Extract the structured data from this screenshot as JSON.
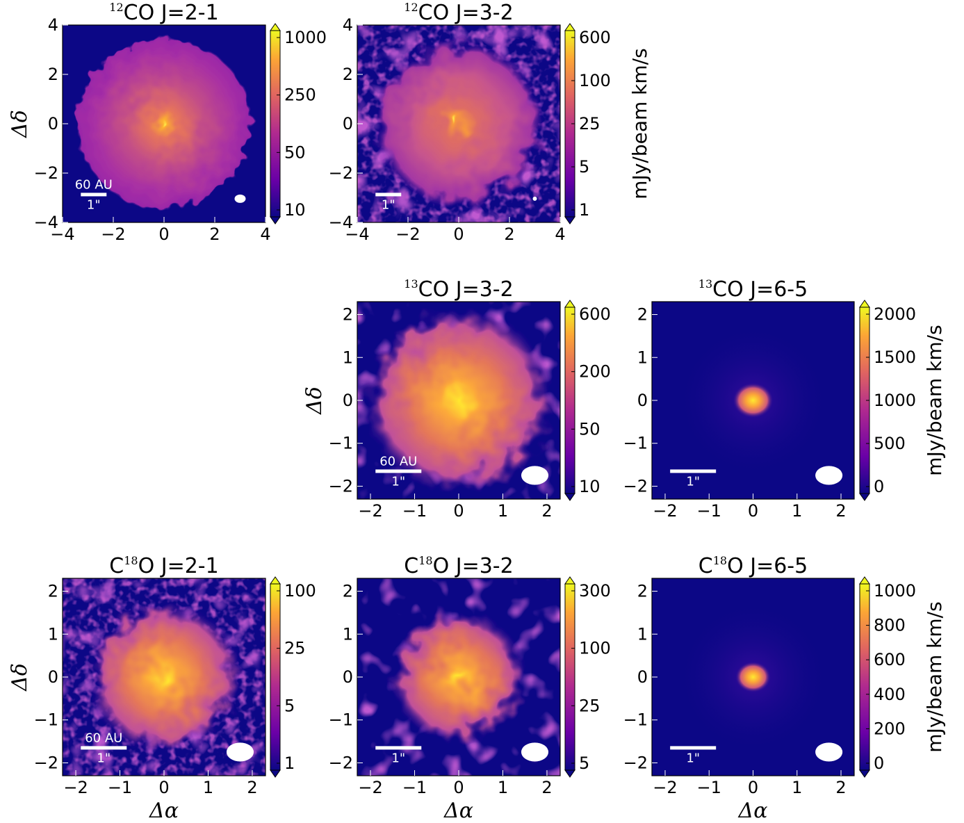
{
  "colors": {
    "background": "#0c0786",
    "colormap": [
      "#0c0786",
      "#6a00a7",
      "#b02a8f",
      "#e06461",
      "#fca635",
      "#eff821"
    ],
    "annotation": "#ffffff"
  },
  "axis_labels": {
    "x": "Δα",
    "y": "Δδ"
  },
  "colorbar_unit": "mJy/beam km/s",
  "chart_data": [
    {
      "type": "heatmap",
      "title": {
        "sup": "12",
        "main": "CO J=2-1"
      },
      "xlabel": "",
      "ylabel": "Δδ",
      "xlim": [
        -4,
        4
      ],
      "ylim": [
        -4,
        4
      ],
      "xticks": [
        "−4",
        "−2",
        "0",
        "2",
        "4"
      ],
      "yticks": [
        "−4",
        "−2",
        "0",
        "2",
        "4"
      ],
      "colorbar": {
        "scale": "log",
        "ticks": [
          "1000",
          "250",
          "50",
          "10"
        ],
        "unit": ""
      },
      "scale_bar": {
        "top": "60 AU",
        "bottom": "1\""
      },
      "emission": {
        "peak_x": 0,
        "peak_y": 0,
        "extent_radius": 3.4,
        "noise": "low"
      }
    },
    {
      "type": "heatmap",
      "title": {
        "sup": "12",
        "main": "CO J=3-2"
      },
      "xlabel": "",
      "ylabel": "",
      "xlim": [
        -4,
        4
      ],
      "ylim": [
        -4,
        4
      ],
      "xticks": [
        "−4",
        "−2",
        "0",
        "2",
        "4"
      ],
      "yticks": [
        "−4",
        "−2",
        "0",
        "2",
        "4"
      ],
      "colorbar": {
        "scale": "log",
        "ticks": [
          "600",
          "100",
          "25",
          "5",
          "1"
        ],
        "unit": "mJy/beam km/s"
      },
      "scale_bar": {
        "top": "",
        "bottom": "1\""
      },
      "emission": {
        "peak_x": 0,
        "peak_y": 0,
        "extent_radius": 3.3,
        "noise": "high"
      }
    },
    {
      "type": "heatmap",
      "title": {
        "sup": "13",
        "main": "CO J=3-2"
      },
      "xlabel": "",
      "ylabel": "Δδ",
      "xlim": [
        -2.3,
        2.3
      ],
      "ylim": [
        -2.3,
        2.3
      ],
      "xticks": [
        "−2",
        "−1",
        "0",
        "1",
        "2"
      ],
      "yticks": [
        "−2",
        "−1",
        "0",
        "1",
        "2"
      ],
      "colorbar": {
        "scale": "log",
        "ticks": [
          "600",
          "200",
          "50",
          "10"
        ],
        "unit": ""
      },
      "scale_bar": {
        "top": "60 AU",
        "bottom": "1\""
      },
      "emission": {
        "peak_x": 0,
        "peak_y": 0,
        "extent_radius": 2.1,
        "noise": "medium"
      }
    },
    {
      "type": "heatmap",
      "title": {
        "sup": "13",
        "main": "CO J=6-5"
      },
      "xlabel": "",
      "ylabel": "",
      "xlim": [
        -2.3,
        2.3
      ],
      "ylim": [
        -2.3,
        2.3
      ],
      "xticks": [
        "−2",
        "−1",
        "0",
        "1",
        "2"
      ],
      "yticks": [
        "−2",
        "−1",
        "0",
        "1",
        "2"
      ],
      "colorbar": {
        "scale": "linear",
        "ticks": [
          "2000",
          "1500",
          "1000",
          "500",
          "0"
        ],
        "unit": "mJy/beam km/s"
      },
      "scale_bar": {
        "top": "",
        "bottom": "1\""
      },
      "emission": {
        "peak_x": 0,
        "peak_y": 0,
        "extent_radius": 0.4,
        "noise": "low"
      }
    },
    {
      "type": "heatmap",
      "title": {
        "sup": "18",
        "main_pre": "C",
        "main": "O J=2-1"
      },
      "xlabel": "Δα",
      "ylabel": "Δδ",
      "xlim": [
        -2.3,
        2.3
      ],
      "ylim": [
        -2.3,
        2.3
      ],
      "xticks": [
        "−2",
        "−1",
        "0",
        "1",
        "2"
      ],
      "yticks": [
        "−2",
        "−1",
        "0",
        "1",
        "2"
      ],
      "colorbar": {
        "scale": "log",
        "ticks": [
          "100",
          "25",
          "5",
          "1"
        ],
        "unit": ""
      },
      "scale_bar": {
        "top": "60 AU",
        "bottom": "1\""
      },
      "emission": {
        "peak_x": 0,
        "peak_y": 0,
        "extent_radius": 1.7,
        "noise": "high"
      }
    },
    {
      "type": "heatmap",
      "title": {
        "sup": "18",
        "main_pre": "C",
        "main": "O J=3-2"
      },
      "xlabel": "Δα",
      "ylabel": "",
      "xlim": [
        -2.3,
        2.3
      ],
      "ylim": [
        -2.3,
        2.3
      ],
      "xticks": [
        "−2",
        "−1",
        "0",
        "1",
        "2"
      ],
      "yticks": [
        "−2",
        "−1",
        "0",
        "1",
        "2"
      ],
      "colorbar": {
        "scale": "log",
        "ticks": [
          "300",
          "100",
          "25",
          "5"
        ],
        "unit": ""
      },
      "scale_bar": {
        "top": "",
        "bottom": "1\""
      },
      "emission": {
        "peak_x": 0,
        "peak_y": 0,
        "extent_radius": 1.5,
        "noise": "medium"
      }
    },
    {
      "type": "heatmap",
      "title": {
        "sup": "18",
        "main_pre": "C",
        "main": "O J=6-5"
      },
      "xlabel": "Δα",
      "ylabel": "",
      "xlim": [
        -2.3,
        2.3
      ],
      "ylim": [
        -2.3,
        2.3
      ],
      "xticks": [
        "−2",
        "−1",
        "0",
        "1",
        "2"
      ],
      "yticks": [
        "−2",
        "−1",
        "0",
        "1",
        "2"
      ],
      "colorbar": {
        "scale": "linear",
        "ticks": [
          "1000",
          "800",
          "600",
          "400",
          "200",
          "0"
        ],
        "unit": "mJy/beam km/s"
      },
      "scale_bar": {
        "top": "",
        "bottom": "1\""
      },
      "emission": {
        "peak_x": 0,
        "peak_y": 0,
        "extent_radius": 0.35,
        "noise": "low"
      }
    }
  ]
}
